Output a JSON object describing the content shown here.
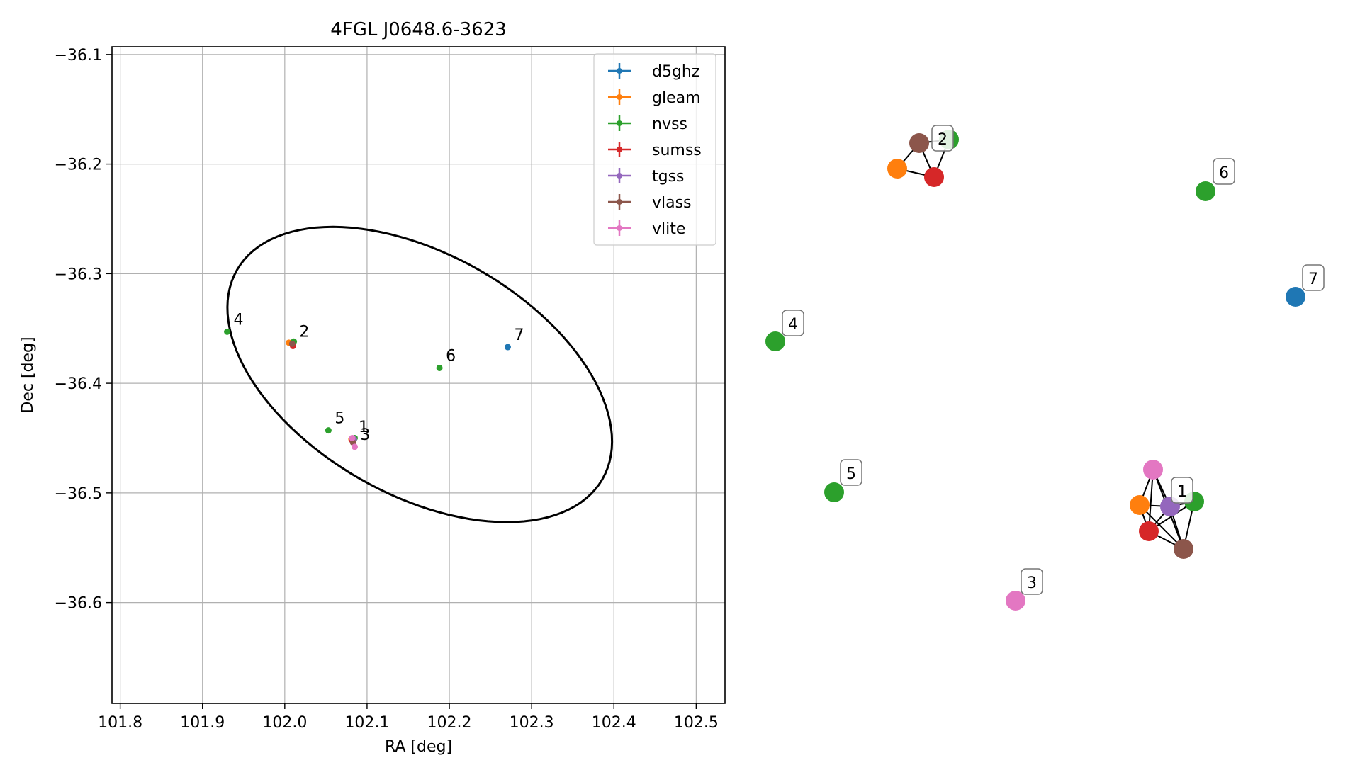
{
  "chart_data": [
    {
      "type": "scatter",
      "title": "4FGL J0648.6-3623",
      "xlabel": "RA [deg]",
      "ylabel": "Dec [deg]",
      "xlim": [
        101.79,
        102.535
      ],
      "ylim": [
        -36.692,
        -36.093
      ],
      "xticks": [
        {
          "v": 101.8,
          "label": "101.8"
        },
        {
          "v": 101.9,
          "label": "101.9"
        },
        {
          "v": 102.0,
          "label": "102.0"
        },
        {
          "v": 102.1,
          "label": "102.1"
        },
        {
          "v": 102.2,
          "label": "102.2"
        },
        {
          "v": 102.3,
          "label": "102.3"
        },
        {
          "v": 102.4,
          "label": "102.4"
        },
        {
          "v": 102.5,
          "label": "102.5"
        }
      ],
      "yticks": [
        {
          "v": -36.1,
          "label": "−36.1"
        },
        {
          "v": -36.2,
          "label": "−36.2"
        },
        {
          "v": -36.3,
          "label": "−36.3"
        },
        {
          "v": -36.4,
          "label": "−36.4"
        },
        {
          "v": -36.5,
          "label": "−36.5"
        },
        {
          "v": -36.6,
          "label": "−36.6"
        }
      ],
      "grid": true,
      "legend_position": "top-right",
      "ellipse": {
        "center": [
          102.164,
          -36.392
        ],
        "a_deg": 0.244,
        "b_deg": 0.115,
        "angle_deg": -19
      },
      "series": [
        {
          "name": "d5ghz",
          "color": "#1f77b4",
          "points": [
            {
              "x": 102.271,
              "y": -36.367
            }
          ]
        },
        {
          "name": "gleam",
          "color": "#ff7f0e",
          "points": [
            {
              "x": 102.005,
              "y": -36.363
            },
            {
              "x": 102.081,
              "y": -36.451
            }
          ]
        },
        {
          "name": "nvss",
          "color": "#2ca02c",
          "points": [
            {
              "x": 101.93,
              "y": -36.353
            },
            {
              "x": 102.053,
              "y": -36.443
            },
            {
              "x": 102.188,
              "y": -36.386
            },
            {
              "x": 102.011,
              "y": -36.362
            },
            {
              "x": 102.085,
              "y": -36.45
            }
          ]
        },
        {
          "name": "sumss",
          "color": "#d62728",
          "points": [
            {
              "x": 102.01,
              "y": -36.366
            },
            {
              "x": 102.082,
              "y": -36.452
            }
          ]
        },
        {
          "name": "tgss",
          "color": "#9467bd",
          "points": [
            {
              "x": 102.084,
              "y": -36.451
            }
          ]
        },
        {
          "name": "vlass",
          "color": "#8c564b",
          "points": [
            {
              "x": 102.009,
              "y": -36.364
            },
            {
              "x": 102.083,
              "y": -36.454
            }
          ]
        },
        {
          "name": "vlite",
          "color": "#e377c2",
          "points": [
            {
              "x": 102.082,
              "y": -36.45
            },
            {
              "x": 102.085,
              "y": -36.458
            }
          ]
        }
      ],
      "labels": [
        {
          "text": "1",
          "x": 102.082,
          "y": -36.451
        },
        {
          "text": "2",
          "x": 102.01,
          "y": -36.364
        },
        {
          "text": "3",
          "x": 102.084,
          "y": -36.458
        },
        {
          "text": "4",
          "x": 101.93,
          "y": -36.353
        },
        {
          "text": "5",
          "x": 102.053,
          "y": -36.443
        },
        {
          "text": "6",
          "x": 102.188,
          "y": -36.386
        },
        {
          "text": "7",
          "x": 102.271,
          "y": -36.367
        }
      ]
    },
    {
      "type": "network",
      "groups": [
        {
          "label": "1",
          "nodes": [
            "vlite",
            "gleam",
            "tgss",
            "nvss",
            "sumss",
            "vlass"
          ],
          "edges": [
            [
              0,
              1
            ],
            [
              0,
              2
            ],
            [
              0,
              4
            ],
            [
              0,
              5
            ],
            [
              1,
              2
            ],
            [
              1,
              4
            ],
            [
              1,
              5
            ],
            [
              2,
              3
            ],
            [
              2,
              4
            ],
            [
              2,
              5
            ],
            [
              3,
              4
            ],
            [
              3,
              5
            ],
            [
              4,
              5
            ]
          ]
        },
        {
          "label": "2",
          "nodes": [
            "vlass",
            "nvss",
            "gleam",
            "sumss"
          ],
          "edges": [
            [
              0,
              1
            ],
            [
              0,
              2
            ],
            [
              0,
              3
            ],
            [
              1,
              3
            ],
            [
              2,
              3
            ]
          ]
        },
        {
          "label": "3",
          "nodes": [
            "vlite"
          ],
          "edges": []
        },
        {
          "label": "4",
          "nodes": [
            "nvss"
          ],
          "edges": []
        },
        {
          "label": "5",
          "nodes": [
            "nvss"
          ],
          "edges": []
        },
        {
          "label": "6",
          "nodes": [
            "nvss"
          ],
          "edges": []
        },
        {
          "label": "7",
          "nodes": [
            "d5ghz"
          ],
          "edges": []
        }
      ]
    }
  ]
}
